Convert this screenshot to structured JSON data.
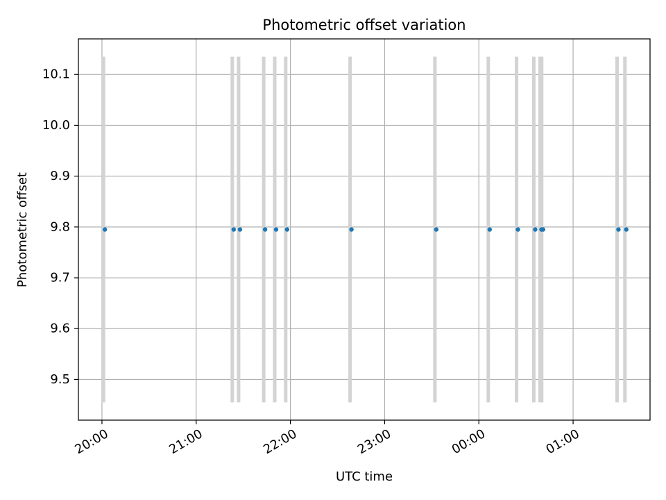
{
  "chart_data": {
    "type": "scatter",
    "title": "Photometric offset variation",
    "xlabel": "UTC time",
    "ylabel": "Photometric offset",
    "xlim": [
      "19:45",
      "01:49"
    ],
    "ylim": [
      9.42,
      10.17
    ],
    "grid": true,
    "x_ticks": [
      "20:00",
      "21:00",
      "22:00",
      "23:00",
      "00:00",
      "01:00"
    ],
    "y_ticks": [
      9.5,
      9.6,
      9.7,
      9.8,
      9.9,
      10.0,
      10.1
    ],
    "error_bar_half_width": 0.34,
    "colors": {
      "points": "#1f77b4",
      "error_bars": "#d3d3d3",
      "grid": "#b0b0b0"
    },
    "points": [
      {
        "x": "20:01",
        "y": 9.795
      },
      {
        "x": "21:23",
        "y": 9.795
      },
      {
        "x": "21:27",
        "y": 9.795
      },
      {
        "x": "21:43",
        "y": 9.795
      },
      {
        "x": "21:50",
        "y": 9.795
      },
      {
        "x": "21:57",
        "y": 9.795
      },
      {
        "x": "22:38",
        "y": 9.795
      },
      {
        "x": "23:32",
        "y": 9.795
      },
      {
        "x": "00:06",
        "y": 9.795
      },
      {
        "x": "00:24",
        "y": 9.795
      },
      {
        "x": "00:35",
        "y": 9.795
      },
      {
        "x": "00:39",
        "y": 9.795
      },
      {
        "x": "00:40",
        "y": 9.795
      },
      {
        "x": "01:28",
        "y": 9.795
      },
      {
        "x": "01:33",
        "y": 9.795
      }
    ]
  }
}
